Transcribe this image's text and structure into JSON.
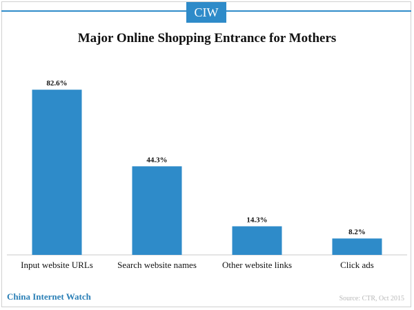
{
  "header": {
    "logo_text": "CIW"
  },
  "footer": {
    "brand": "China Internet Watch",
    "source": "Source: CTR, Oct 2015"
  },
  "colors": {
    "accent": "#2e8bc9",
    "bar": "#2e8bc9"
  },
  "chart_data": {
    "type": "bar",
    "title": "Major Online Shopping Entrance for Mothers",
    "categories": [
      "Input website URLs",
      "Search website names",
      "Other website links",
      "Click ads"
    ],
    "values": [
      82.6,
      44.3,
      14.3,
      8.2
    ],
    "value_labels": [
      "82.6%",
      "44.3%",
      "14.3%",
      "8.2%"
    ],
    "xlabel": "",
    "ylabel": "",
    "ylim": [
      0,
      100
    ],
    "unit": "%",
    "grid": false,
    "legend": "none"
  }
}
